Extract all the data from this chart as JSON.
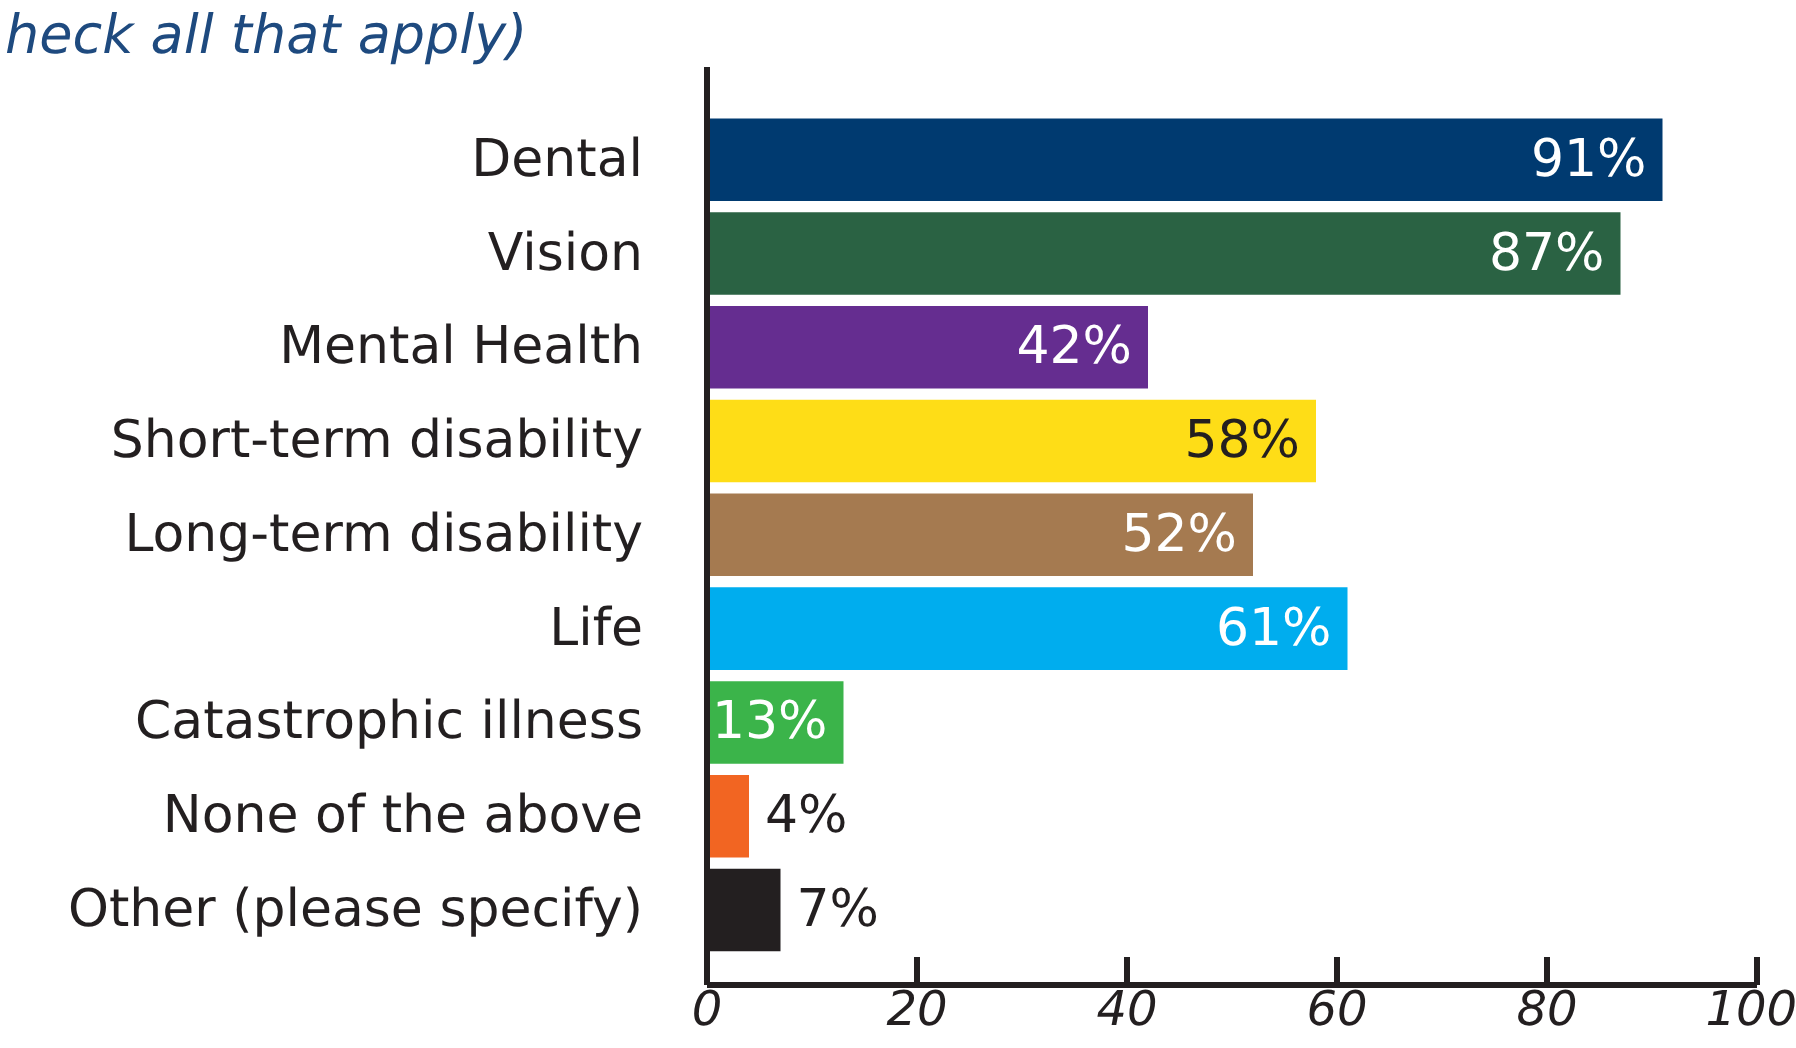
{
  "chart_data": {
    "type": "bar",
    "orientation": "horizontal",
    "title": "heck all that apply)",
    "categories": [
      "Dental",
      "Vision",
      "Mental Health",
      "Short-term disability",
      "Long-term disability",
      "Life",
      "Catastrophic illness",
      "None of the above",
      "Other (please specify)"
    ],
    "values": [
      91,
      87,
      42,
      58,
      52,
      61,
      13,
      4,
      7
    ],
    "colors": [
      "#003a70",
      "#2a6243",
      "#652d90",
      "#fedd17",
      "#a57a50",
      "#00adee",
      "#3bb44a",
      "#f26522",
      "#231f20"
    ],
    "value_labels": [
      "91%",
      "87%",
      "42%",
      "58%",
      "52%",
      "61%",
      "13%",
      "4%",
      "7%"
    ],
    "xlim": [
      0,
      100
    ],
    "xticks": [
      0,
      20,
      40,
      60,
      80,
      100
    ]
  }
}
